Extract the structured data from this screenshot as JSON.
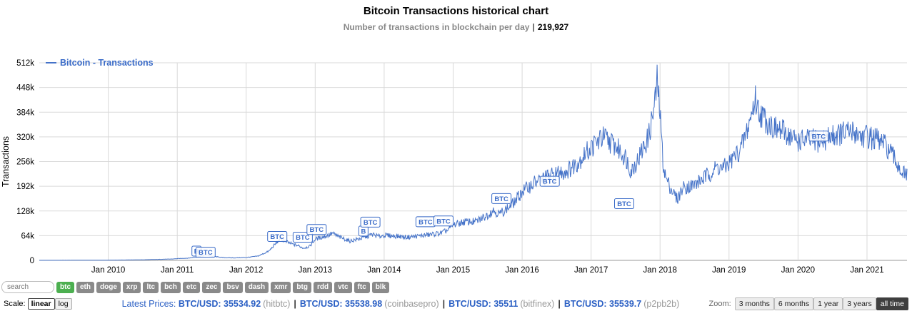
{
  "title": "Bitcoin Transactions historical chart",
  "subtitle": {
    "label": "Number of transactions in blockchain per day",
    "separator": "|",
    "value": "219,927"
  },
  "colors": {
    "line": "#4472c8",
    "legend_text": "#3a6bc8",
    "grid": "#d9d9d9",
    "axis_zero": "#999999",
    "btc_button": "#4caf50",
    "coin_button": "#8a8a8a",
    "link": "#2a5fc4",
    "zoom_active_bg": "#3f3f3f"
  },
  "chart_data": {
    "type": "line",
    "title": "Bitcoin Transactions historical chart",
    "series_name": "Bitcoin - Transactions",
    "ylabel": "Transactions",
    "y_unit": "transactions per day (thousands)",
    "x_start": 2009.0,
    "x_end": 2021.58,
    "ylim_k": [
      0,
      512
    ],
    "ytick_step_k": 64,
    "noise_fraction": 0.1,
    "grid": true,
    "legend_position": "top-left",
    "xticks": [
      {
        "x": 2010,
        "label": "Jan 2010"
      },
      {
        "x": 2011,
        "label": "Jan 2011"
      },
      {
        "x": 2012,
        "label": "Jan 2012"
      },
      {
        "x": 2013,
        "label": "Jan 2013"
      },
      {
        "x": 2014,
        "label": "Jan 2014"
      },
      {
        "x": 2015,
        "label": "Jan 2015"
      },
      {
        "x": 2016,
        "label": "Jan 2016"
      },
      {
        "x": 2017,
        "label": "Jan 2017"
      },
      {
        "x": 2018,
        "label": "Jan 2018"
      },
      {
        "x": 2019,
        "label": "Jan 2019"
      },
      {
        "x": 2020,
        "label": "Jan 2020"
      },
      {
        "x": 2021,
        "label": "Jan 2021"
      }
    ],
    "points": [
      [
        2009.0,
        0.2
      ],
      [
        2009.5,
        0.3
      ],
      [
        2010.0,
        0.6
      ],
      [
        2010.5,
        1.5
      ],
      [
        2010.92,
        3.5
      ],
      [
        2011.0,
        4.5
      ],
      [
        2011.17,
        6
      ],
      [
        2011.33,
        10
      ],
      [
        2011.42,
        14
      ],
      [
        2011.5,
        11
      ],
      [
        2011.67,
        7
      ],
      [
        2011.83,
        6.5
      ],
      [
        2012.0,
        7.5
      ],
      [
        2012.17,
        11
      ],
      [
        2012.33,
        24
      ],
      [
        2012.42,
        42
      ],
      [
        2012.5,
        56
      ],
      [
        2012.58,
        48
      ],
      [
        2012.67,
        42
      ],
      [
        2012.75,
        38
      ],
      [
        2012.83,
        32
      ],
      [
        2012.92,
        36
      ],
      [
        2013.0,
        55
      ],
      [
        2013.17,
        64
      ],
      [
        2013.25,
        70
      ],
      [
        2013.33,
        62
      ],
      [
        2013.5,
        50
      ],
      [
        2013.67,
        57
      ],
      [
        2013.83,
        67
      ],
      [
        2013.92,
        62
      ],
      [
        2014.0,
        65
      ],
      [
        2014.17,
        63
      ],
      [
        2014.33,
        60
      ],
      [
        2014.5,
        63
      ],
      [
        2014.67,
        67
      ],
      [
        2014.83,
        71
      ],
      [
        2014.92,
        78
      ],
      [
        2015.0,
        92
      ],
      [
        2015.17,
        100
      ],
      [
        2015.33,
        100
      ],
      [
        2015.5,
        118
      ],
      [
        2015.58,
        130
      ],
      [
        2015.67,
        120
      ],
      [
        2015.83,
        140
      ],
      [
        2015.92,
        158
      ],
      [
        2016.0,
        178
      ],
      [
        2016.17,
        200
      ],
      [
        2016.33,
        214
      ],
      [
        2016.5,
        224
      ],
      [
        2016.67,
        234
      ],
      [
        2016.83,
        258
      ],
      [
        2016.92,
        278
      ],
      [
        2017.0,
        292
      ],
      [
        2017.17,
        320
      ],
      [
        2017.33,
        300
      ],
      [
        2017.5,
        268
      ],
      [
        2017.58,
        232
      ],
      [
        2017.67,
        258
      ],
      [
        2017.83,
        318
      ],
      [
        2017.92,
        400
      ],
      [
        2017.96,
        468
      ],
      [
        2018.0,
        380
      ],
      [
        2018.04,
        260
      ],
      [
        2018.08,
        215
      ],
      [
        2018.17,
        182
      ],
      [
        2018.25,
        158
      ],
      [
        2018.33,
        188
      ],
      [
        2018.5,
        196
      ],
      [
        2018.67,
        218
      ],
      [
        2018.83,
        242
      ],
      [
        2018.92,
        238
      ],
      [
        2019.0,
        252
      ],
      [
        2019.17,
        288
      ],
      [
        2019.25,
        330
      ],
      [
        2019.33,
        380
      ],
      [
        2019.38,
        420
      ],
      [
        2019.42,
        392
      ],
      [
        2019.5,
        370
      ],
      [
        2019.67,
        340
      ],
      [
        2019.83,
        330
      ],
      [
        2019.92,
        316
      ],
      [
        2020.0,
        310
      ],
      [
        2020.17,
        312
      ],
      [
        2020.33,
        308
      ],
      [
        2020.5,
        324
      ],
      [
        2020.67,
        330
      ],
      [
        2020.83,
        332
      ],
      [
        2020.92,
        322
      ],
      [
        2021.0,
        322
      ],
      [
        2021.17,
        310
      ],
      [
        2021.25,
        300
      ],
      [
        2021.33,
        282
      ],
      [
        2021.42,
        256
      ],
      [
        2021.5,
        232
      ],
      [
        2021.55,
        220
      ]
    ],
    "annotations": [
      {
        "x": 2011.28,
        "y_k": 24,
        "label": "B"
      },
      {
        "x": 2011.41,
        "y_k": 21,
        "label": "BTC"
      },
      {
        "x": 2012.45,
        "y_k": 62,
        "label": "BTC"
      },
      {
        "x": 2012.82,
        "y_k": 60,
        "label": "BTC"
      },
      {
        "x": 2013.02,
        "y_k": 80,
        "label": "BTC"
      },
      {
        "x": 2013.7,
        "y_k": 76,
        "label": "B"
      },
      {
        "x": 2013.8,
        "y_k": 99,
        "label": "BTC"
      },
      {
        "x": 2014.6,
        "y_k": 100,
        "label": "BTC"
      },
      {
        "x": 2014.86,
        "y_k": 102,
        "label": "BTC"
      },
      {
        "x": 2015.7,
        "y_k": 160,
        "label": "BTC"
      },
      {
        "x": 2016.4,
        "y_k": 205,
        "label": "BTC"
      },
      {
        "x": 2017.48,
        "y_k": 147,
        "label": "BTC"
      },
      {
        "x": 2020.3,
        "y_k": 322,
        "label": "BTC"
      }
    ]
  },
  "controls": {
    "search_placeholder": "search",
    "coins": [
      {
        "label": "btc",
        "active": true
      },
      {
        "label": "eth",
        "active": false
      },
      {
        "label": "doge",
        "active": false
      },
      {
        "label": "xrp",
        "active": false
      },
      {
        "label": "ltc",
        "active": false
      },
      {
        "label": "bch",
        "active": false
      },
      {
        "label": "etc",
        "active": false
      },
      {
        "label": "zec",
        "active": false
      },
      {
        "label": "bsv",
        "active": false
      },
      {
        "label": "dash",
        "active": false
      },
      {
        "label": "xmr",
        "active": false
      },
      {
        "label": "btg",
        "active": false
      },
      {
        "label": "rdd",
        "active": false
      },
      {
        "label": "vtc",
        "active": false
      },
      {
        "label": "ftc",
        "active": false
      },
      {
        "label": "blk",
        "active": false
      }
    ],
    "scale_label": "Scale:",
    "scale_options": [
      {
        "label": "linear",
        "active": true
      },
      {
        "label": "log",
        "active": false
      }
    ],
    "prices_label": "Latest Prices:",
    "prices": [
      {
        "pair": "BTC/USD:",
        "value": "35534.92",
        "exchange": "(hitbtc)"
      },
      {
        "pair": "BTC/USD:",
        "value": "35538.98",
        "exchange": "(coinbasepro)"
      },
      {
        "pair": "BTC/USD:",
        "value": "35511",
        "exchange": "(bitfinex)"
      },
      {
        "pair": "BTC/USD:",
        "value": "35539.7",
        "exchange": "(p2pb2b)"
      }
    ],
    "zoom_label": "Zoom:",
    "zoom_options": [
      {
        "label": "3 months",
        "active": false
      },
      {
        "label": "6 months",
        "active": false
      },
      {
        "label": "1 year",
        "active": false
      },
      {
        "label": "3 years",
        "active": false
      },
      {
        "label": "all time",
        "active": true
      }
    ]
  }
}
